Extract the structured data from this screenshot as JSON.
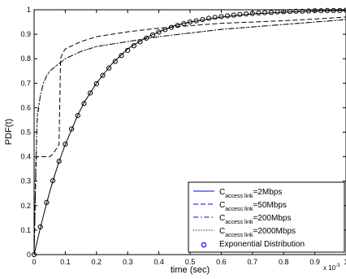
{
  "chart_data": {
    "type": "line",
    "title": "",
    "xlabel": "time (sec)",
    "ylabel": "PDF(t)",
    "x_exponent_label": "x 10",
    "x_exponent_power": "-3",
    "xlim": [
      0,
      1
    ],
    "ylim": [
      0,
      1
    ],
    "x_ticks": [
      0,
      0.1,
      0.2,
      0.3,
      0.4,
      0.5,
      0.6,
      0.7,
      0.8,
      0.9,
      1
    ],
    "x_tick_labels": [
      "0",
      "0.1",
      "0.2",
      "0.3",
      "0.4",
      "0.5",
      "0.6",
      "0.7",
      "0.8",
      "0.9",
      "1"
    ],
    "y_ticks": [
      0,
      0.1,
      0.2,
      0.3,
      0.4,
      0.5,
      0.6,
      0.7,
      0.8,
      0.9,
      1
    ],
    "y_tick_labels": [
      "0",
      "0.1",
      "0.2",
      "0.3",
      "0.4",
      "0.5",
      "0.6",
      "0.7",
      "0.8",
      "0.9",
      "1"
    ],
    "grid": false,
    "legend_position": "bottom-right",
    "series": [
      {
        "legend_main": "C",
        "legend_sub": "access link",
        "legend_suffix": "=2Mbps",
        "style": "solid",
        "color": "#000000",
        "legend_color": "#0000ff",
        "x": [
          0,
          0.02,
          0.04,
          0.06,
          0.08,
          0.1,
          0.12,
          0.14,
          0.16,
          0.18,
          0.2,
          0.25,
          0.3,
          0.35,
          0.4,
          0.45,
          0.5,
          0.6,
          0.7,
          0.8,
          0.9,
          1.0
        ],
        "y": [
          0,
          0.11,
          0.21,
          0.3,
          0.38,
          0.45,
          0.51,
          0.57,
          0.62,
          0.66,
          0.7,
          0.78,
          0.84,
          0.88,
          0.91,
          0.935,
          0.95,
          0.97,
          0.983,
          0.99,
          0.995,
          0.997
        ]
      },
      {
        "legend_main": "C",
        "legend_sub": "access link",
        "legend_suffix": "=50Mbps",
        "style": "dashed",
        "color": "#000000",
        "legend_color": "#0000ff",
        "x": [
          0,
          0.003,
          0.006,
          0.01,
          0.02,
          0.03,
          0.04,
          0.05,
          0.06,
          0.07,
          0.08,
          0.085,
          0.09,
          0.1,
          0.15,
          0.2,
          0.3,
          0.4,
          0.5,
          0.6,
          0.7,
          0.8,
          0.9,
          1.0
        ],
        "y": [
          0,
          0.2,
          0.39,
          0.4,
          0.4,
          0.4,
          0.4,
          0.4,
          0.41,
          0.43,
          0.45,
          0.8,
          0.82,
          0.84,
          0.87,
          0.89,
          0.91,
          0.925,
          0.935,
          0.945,
          0.95,
          0.955,
          0.962,
          0.97
        ]
      },
      {
        "legend_main": "C",
        "legend_sub": "access link",
        "legend_suffix": "=200Mbps",
        "style": "dashdot",
        "color": "#000000",
        "legend_color": "#0000ff",
        "x": [
          0,
          0.005,
          0.01,
          0.02,
          0.03,
          0.04,
          0.05,
          0.06,
          0.07,
          0.08,
          0.1,
          0.15,
          0.2,
          0.3,
          0.4,
          0.5,
          0.6,
          0.7,
          0.8,
          0.9,
          1.0
        ],
        "y": [
          0,
          0.3,
          0.55,
          0.65,
          0.7,
          0.73,
          0.75,
          0.76,
          0.77,
          0.78,
          0.8,
          0.83,
          0.85,
          0.87,
          0.89,
          0.905,
          0.92,
          0.93,
          0.94,
          0.95,
          0.96
        ]
      },
      {
        "legend_main": "C",
        "legend_sub": "access link",
        "legend_suffix": "=2000Mbps",
        "style": "dotted",
        "color": "#000000",
        "legend_color": "#000000",
        "x": [
          0,
          0.005,
          0.01,
          0.02,
          0.03,
          0.04,
          0.05,
          0.06,
          0.08,
          0.1,
          0.15,
          0.2,
          0.3,
          0.4,
          0.5,
          0.6,
          0.7,
          0.8,
          0.9,
          1.0
        ],
        "y": [
          0,
          0.35,
          0.58,
          0.65,
          0.7,
          0.73,
          0.75,
          0.76,
          0.78,
          0.8,
          0.83,
          0.85,
          0.87,
          0.89,
          0.905,
          0.92,
          0.93,
          0.94,
          0.95,
          0.96
        ]
      },
      {
        "legend_main": "Exponential Distribution",
        "legend_sub": "",
        "legend_suffix": "",
        "style": "markers",
        "marker": "circle",
        "color": "#000000",
        "legend_color": "#0000ff",
        "x": [
          0,
          0.02,
          0.04,
          0.06,
          0.08,
          0.1,
          0.12,
          0.14,
          0.16,
          0.18,
          0.2,
          0.22,
          0.24,
          0.26,
          0.28,
          0.3,
          0.32,
          0.34,
          0.36,
          0.38,
          0.4,
          0.42,
          0.44,
          0.46,
          0.48,
          0.5,
          0.52,
          0.54,
          0.56,
          0.58,
          0.6,
          0.62,
          0.64,
          0.66,
          0.68,
          0.7,
          0.72,
          0.74,
          0.76,
          0.78,
          0.8,
          0.82,
          0.84,
          0.86,
          0.88,
          0.9,
          0.92,
          0.94,
          0.96,
          0.98,
          1.0
        ],
        "y": [
          0,
          0.113,
          0.213,
          0.302,
          0.381,
          0.451,
          0.513,
          0.568,
          0.617,
          0.66,
          0.698,
          0.732,
          0.762,
          0.789,
          0.813,
          0.834,
          0.853,
          0.869,
          0.884,
          0.897,
          0.909,
          0.919,
          0.928,
          0.936,
          0.943,
          0.95,
          0.955,
          0.96,
          0.965,
          0.969,
          0.972,
          0.975,
          0.978,
          0.981,
          0.983,
          0.985,
          0.987,
          0.988,
          0.989,
          0.991,
          0.992,
          0.993,
          0.994,
          0.994,
          0.995,
          0.996,
          0.996,
          0.997,
          0.997,
          0.997,
          0.998
        ]
      }
    ]
  }
}
